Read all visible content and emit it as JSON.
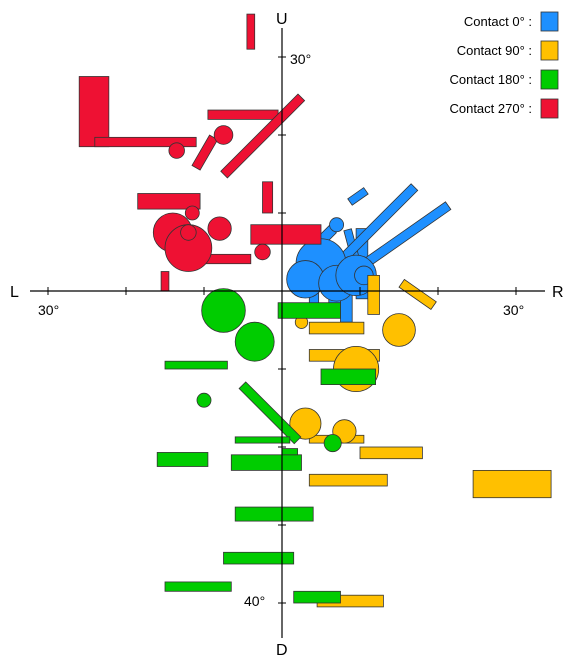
{
  "chart_data": {
    "type": "scatter",
    "axes": {
      "up_label": "U",
      "down_label": "D",
      "left_label": "L",
      "right_label": "R",
      "left_deg_label": "30°",
      "right_deg_label": "30°",
      "top_deg_label": "30°",
      "bottom_deg_label": "40°"
    },
    "scale": {
      "horizontal_deg_range": [
        -30,
        30
      ],
      "up_deg_max": 30,
      "down_deg_max": 40
    },
    "legend": {
      "placement": "top-right",
      "entries": [
        {
          "label": "Contact 0° :",
          "color": "#1e90ff"
        },
        {
          "label": "Contact 90° :",
          "color": "#ffc000"
        },
        {
          "label": "Contact 180° :",
          "color": "#00cc00"
        },
        {
          "label": "Contact 270° :",
          "color": "#ee1133"
        }
      ]
    },
    "series": [
      {
        "name": "Contact 0°",
        "color": "#1e90ff",
        "rects": [
          {
            "x": 4.5,
            "y": 5,
            "w": 3.5,
            "h": 1.3,
            "angle": -45,
            "cy": 10
          },
          {
            "x": 9,
            "y": 11,
            "w": 2.5,
            "h": 1,
            "angle": -35,
            "cy": 18
          },
          {
            "x": 6,
            "y": -2,
            "w": 1.5,
            "h": 4,
            "angle": 0,
            "cy": 0
          },
          {
            "x": 9.5,
            "y": -1,
            "w": 1.5,
            "h": 9,
            "angle": 0,
            "cy": 8
          },
          {
            "x": 7.5,
            "y": -4,
            "w": 1.5,
            "h": 9,
            "angle": 0,
            "cy": 4
          },
          {
            "x": 10,
            "y": 0,
            "w": 1,
            "h": 8,
            "angle": -15,
            "cy": 6
          },
          {
            "x": 7.5,
            "y": 3,
            "w": 14,
            "h": 1.2,
            "angle": -45,
            "cy": 6
          },
          {
            "x": 11,
            "y": 3,
            "w": 13,
            "h": 1.2,
            "angle": -35,
            "cy": 16
          },
          {
            "x": 3.5,
            "y": -3,
            "w": 1.2,
            "h": 8,
            "angle": 0,
            "cy": 0
          }
        ],
        "circles": [
          {
            "x": 5,
            "y": 3.5,
            "r": 3.2
          },
          {
            "x": 3,
            "y": 1.5,
            "r": 2.4
          },
          {
            "x": 7,
            "y": 1,
            "r": 2.3
          },
          {
            "x": 9.5,
            "y": 2,
            "r": 2.6
          },
          {
            "x": 7,
            "y": 8.5,
            "r": 0.9
          },
          {
            "x": 10.5,
            "y": 2,
            "r": 1.2
          }
        ]
      },
      {
        "name": "Contact 90°",
        "color": "#ffc000",
        "rects": [
          {
            "x": 15,
            "y": 0.5,
            "w": 5,
            "h": 1.2,
            "angle": 35,
            "cy": 0
          },
          {
            "x": 11,
            "y": -3,
            "w": 1.5,
            "h": 5,
            "angle": 0,
            "cy": 0
          },
          {
            "x": 3.5,
            "y": -5.5,
            "w": 7,
            "h": 1.5,
            "angle": 0,
            "cy": 0
          },
          {
            "x": 3.5,
            "y": -9,
            "w": 9,
            "h": 1.5,
            "angle": 0,
            "cy": 0
          },
          {
            "x": 3.5,
            "y": -19.5,
            "w": 7,
            "h": 1,
            "angle": 0,
            "cy": 0
          },
          {
            "x": 10,
            "y": -21.5,
            "w": 8,
            "h": 1.5,
            "angle": 0,
            "cy": 0
          },
          {
            "x": 3.5,
            "y": -25,
            "w": 10,
            "h": 1.5,
            "angle": 0,
            "cy": 0
          },
          {
            "x": 24.5,
            "y": -26.5,
            "w": 10,
            "h": 3.5,
            "angle": 0,
            "cy": 0
          },
          {
            "x": 4.5,
            "y": -40.5,
            "w": 8.5,
            "h": 1.5,
            "angle": 0,
            "cy": 0
          }
        ],
        "circles": [
          {
            "x": 15,
            "y": -5,
            "r": 2.1
          },
          {
            "x": 9.5,
            "y": -10,
            "r": 2.9
          },
          {
            "x": 3,
            "y": -17,
            "r": 2.0
          },
          {
            "x": 8,
            "y": -18,
            "r": 1.5
          },
          {
            "x": 2.5,
            "y": -4,
            "r": 0.8
          }
        ]
      },
      {
        "name": "Contact 180°",
        "color": "#00cc00",
        "rects": [
          {
            "x": -0.5,
            "y": -3.5,
            "w": 8,
            "h": 2,
            "angle": 0,
            "cy": 0
          },
          {
            "x": 5,
            "y": -12,
            "w": 7,
            "h": 2,
            "angle": 0,
            "cy": 0
          },
          {
            "x": -15,
            "y": -10,
            "w": 8,
            "h": 1,
            "angle": 0,
            "cy": 0
          },
          {
            "x": -5.5,
            "y": -12.5,
            "w": 10,
            "h": 1.2,
            "angle": 45,
            "cy": 0
          },
          {
            "x": -6,
            "y": -19.5,
            "w": 7,
            "h": 0.8,
            "angle": 0,
            "cy": 0
          },
          {
            "x": -16,
            "y": -22.5,
            "w": 6.5,
            "h": 1.8,
            "angle": 0,
            "cy": 0
          },
          {
            "x": -6.5,
            "y": -23,
            "w": 9,
            "h": 2,
            "angle": 0,
            "cy": 0
          },
          {
            "x": -6,
            "y": -29.5,
            "w": 10,
            "h": 1.8,
            "angle": 0,
            "cy": 0
          },
          {
            "x": -7.5,
            "y": -35,
            "w": 9,
            "h": 1.5,
            "angle": 0,
            "cy": 0
          },
          {
            "x": -15,
            "y": -38.5,
            "w": 8.5,
            "h": 1.2,
            "angle": 0,
            "cy": 0
          },
          {
            "x": 1.5,
            "y": -40,
            "w": 6,
            "h": 1.5,
            "angle": 0,
            "cy": 0
          },
          {
            "x": 0,
            "y": -21,
            "w": 2,
            "h": 0.8,
            "angle": 0,
            "cy": 0
          }
        ],
        "circles": [
          {
            "x": -7.5,
            "y": -2.5,
            "r": 2.8
          },
          {
            "x": -3.5,
            "y": -6.5,
            "r": 2.5
          },
          {
            "x": -10,
            "y": -14,
            "r": 0.9
          },
          {
            "x": 6.5,
            "y": -19.5,
            "r": 1.1
          }
        ]
      },
      {
        "name": "Contact 270°",
        "color": "#ee1133",
        "rects": [
          {
            "x": -26,
            "y": 18.5,
            "w": 3.8,
            "h": 9,
            "angle": 0,
            "cy": 0
          },
          {
            "x": -24,
            "y": 18.5,
            "w": 13,
            "h": 1.2,
            "angle": 0,
            "cy": 0
          },
          {
            "x": -9.5,
            "y": 22,
            "w": 9,
            "h": 1.2,
            "angle": 0,
            "cy": 0
          },
          {
            "x": -4.5,
            "y": 31,
            "w": 1,
            "h": 4.5,
            "angle": 0,
            "cy": 0
          },
          {
            "x": -10.5,
            "y": 15.5,
            "w": 4.5,
            "h": 1.2,
            "angle": -60,
            "cy": 0
          },
          {
            "x": -7,
            "y": 14.5,
            "w": 14,
            "h": 1.2,
            "angle": -45,
            "cy": 0
          },
          {
            "x": -18.5,
            "y": 10.5,
            "w": 8,
            "h": 2,
            "angle": 0,
            "cy": 0
          },
          {
            "x": -2.5,
            "y": 10,
            "w": 1.3,
            "h": 4,
            "angle": 0,
            "cy": 0
          },
          {
            "x": -4,
            "y": 6,
            "w": 9,
            "h": 2.5,
            "angle": 0,
            "cy": 0
          },
          {
            "x": -10,
            "y": 3.5,
            "w": 6,
            "h": 1.2,
            "angle": 0,
            "cy": 0
          },
          {
            "x": -15.5,
            "y": 0,
            "w": 1,
            "h": 2.5,
            "angle": 0,
            "cy": 0
          }
        ],
        "circles": [
          {
            "x": -14,
            "y": 7.5,
            "r": 2.5
          },
          {
            "x": -12,
            "y": 5.5,
            "r": 3.0
          },
          {
            "x": -8,
            "y": 8,
            "r": 1.5
          },
          {
            "x": -11.5,
            "y": 10,
            "r": 0.9
          },
          {
            "x": -7.5,
            "y": 20,
            "r": 1.2
          },
          {
            "x": -13.5,
            "y": 18,
            "r": 1.0
          },
          {
            "x": -12,
            "y": 7.5,
            "r": 1.0
          },
          {
            "x": -2.5,
            "y": 5,
            "r": 1.0
          }
        ]
      }
    ]
  }
}
